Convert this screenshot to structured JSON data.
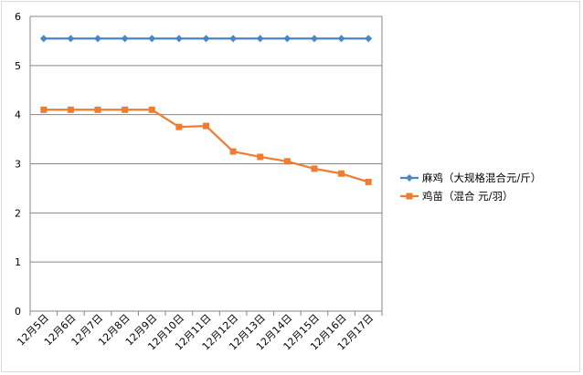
{
  "chart_data": {
    "type": "line",
    "title": "",
    "xlabel": "",
    "ylabel": "",
    "categories": [
      "12月5日",
      "12月6日",
      "12月7日",
      "12月8日",
      "12月9日",
      "12月10日",
      "12月11日",
      "12月12日",
      "12月13日",
      "12月14日",
      "12月15日",
      "12月16日",
      "12月17日"
    ],
    "ylim": [
      0,
      6
    ],
    "yticks": [
      0,
      1,
      2,
      3,
      4,
      5,
      6
    ],
    "grid": true,
    "legend_position": "right",
    "series": [
      {
        "name": "麻鸡（大规格混合元/斤）",
        "color": "#4a86c5",
        "marker": "diamond",
        "values": [
          5.55,
          5.55,
          5.55,
          5.55,
          5.55,
          5.55,
          5.55,
          5.55,
          5.55,
          5.55,
          5.55,
          5.55,
          5.55
        ]
      },
      {
        "name": "鸡苗（混合 元/羽）",
        "color": "#ed7d31",
        "marker": "square",
        "values": [
          4.1,
          4.1,
          4.1,
          4.1,
          4.1,
          3.75,
          3.77,
          3.25,
          3.14,
          3.05,
          2.9,
          2.8,
          2.63
        ]
      }
    ]
  }
}
